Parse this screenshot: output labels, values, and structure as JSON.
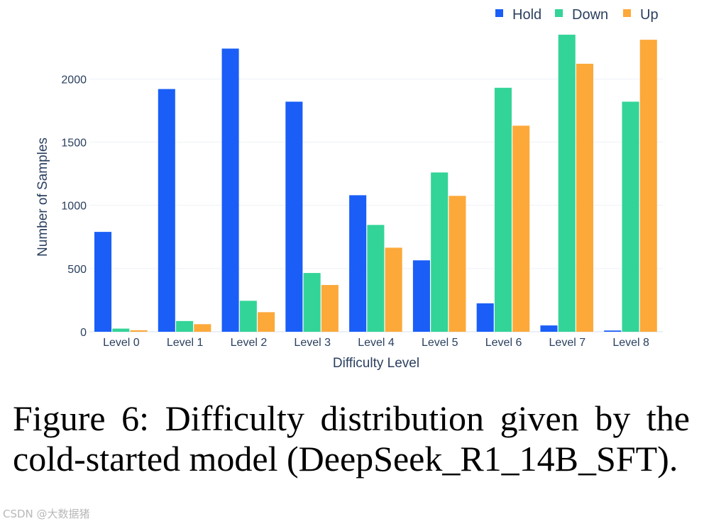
{
  "chart_data": {
    "type": "bar",
    "title": "",
    "xlabel": "Difficulty Level",
    "ylabel": "Number of Samples",
    "categories": [
      "Level 0",
      "Level 1",
      "Level 2",
      "Level 3",
      "Level 4",
      "Level 5",
      "Level 6",
      "Level 7",
      "Level 8"
    ],
    "series": [
      {
        "name": "Hold",
        "color": "#1a5ef7",
        "values": [
          790,
          1920,
          2240,
          1820,
          1080,
          565,
          225,
          50,
          10
        ]
      },
      {
        "name": "Down",
        "color": "#33d498",
        "values": [
          25,
          85,
          245,
          465,
          845,
          1260,
          1930,
          2350,
          1820
        ]
      },
      {
        "name": "Up",
        "color": "#fca93a",
        "values": [
          12,
          60,
          155,
          370,
          665,
          1075,
          1630,
          2120,
          2310
        ]
      }
    ],
    "yticks": [
      0,
      500,
      1000,
      1500,
      2000
    ],
    "ylim": [
      0,
      2400
    ],
    "grid": true,
    "legend_position": "top-right"
  },
  "caption": "Figure 6: Difficulty distribution given by the cold-started model (DeepSeek_R1_14B_SFT).",
  "watermark": "CSDN @大数据猪"
}
